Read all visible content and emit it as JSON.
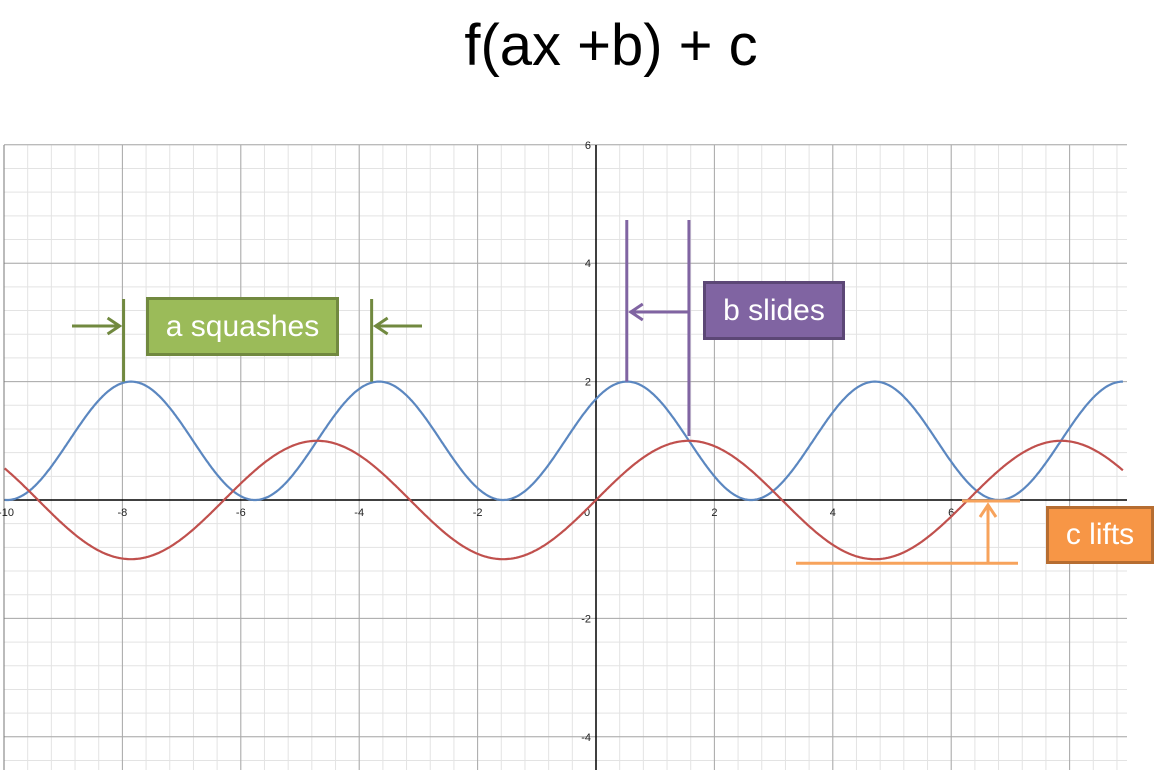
{
  "title": "f(ax +b) + c",
  "chart_data": {
    "type": "line",
    "title": "f(ax +b) + c",
    "xlabel": "",
    "ylabel": "",
    "xlim": [
      -10.2,
      8.9
    ],
    "ylim": [
      -4.5,
      6.1
    ],
    "x_ticks": [
      -10,
      -8,
      -6,
      -4,
      -2,
      0,
      2,
      4,
      6
    ],
    "y_ticks": [
      -4,
      -2,
      2,
      4,
      6
    ],
    "grid": true,
    "series": [
      {
        "color": "#5b87c0",
        "formula": "sin(1.5x + 0.785) + 1",
        "a": 1.5,
        "b": 0.785,
        "c": 1
      },
      {
        "color": "#c0504d",
        "formula": "sin(x)",
        "a": 1,
        "b": 0,
        "c": 0
      }
    ],
    "annotations": {
      "a": {
        "label": "a squashes",
        "color": "#9bbb59",
        "marker_x": [
          -7.98,
          -3.79
        ]
      },
      "b": {
        "label": "b slides",
        "color": "#8064a2",
        "marker_x": [
          0.52,
          1.57
        ]
      },
      "c": {
        "label": "c lifts",
        "color": "#f79646",
        "from_y": -1,
        "to_y": 0
      }
    }
  }
}
